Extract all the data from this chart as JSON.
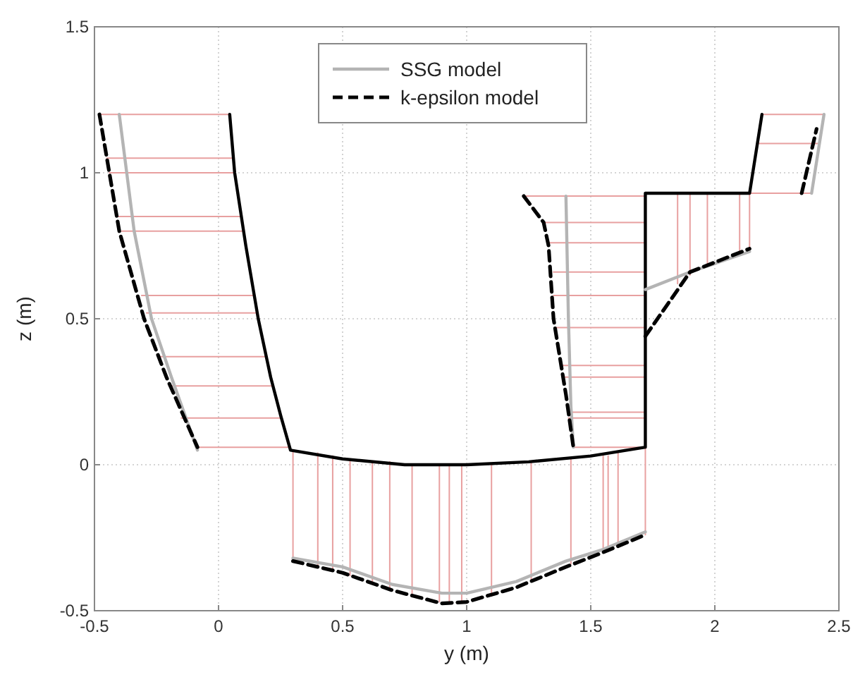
{
  "chart_data": {
    "type": "line",
    "xlabel": "y (m)",
    "ylabel": "z (m)",
    "xlim": [
      -0.5,
      2.5
    ],
    "ylim": [
      -0.5,
      1.5
    ],
    "xticks": [
      -0.5,
      0,
      0.5,
      1,
      1.5,
      2,
      2.5
    ],
    "yticks": [
      -0.5,
      0,
      0.5,
      1,
      1.5
    ],
    "grid": true,
    "legend": "top",
    "marker": "none",
    "series": [
      {
        "color": "#e8a0a0",
        "x": [
          -0.48,
          0.045
        ],
        "values": [
          1.2,
          1.2
        ]
      },
      {
        "color": "#e8a0a0",
        "x": [
          -0.45,
          0.055
        ],
        "values": [
          1.05,
          1.05
        ]
      },
      {
        "color": "#e8a0a0",
        "x": [
          -0.44,
          0.065
        ],
        "values": [
          1.0,
          1.0
        ]
      },
      {
        "color": "#e8a0a0",
        "x": [
          -0.41,
          0.09
        ],
        "values": [
          0.85,
          0.85
        ]
      },
      {
        "color": "#e8a0a0",
        "x": [
          -0.39,
          0.1
        ],
        "values": [
          0.8,
          0.8
        ]
      },
      {
        "color": "#e8a0a0",
        "x": [
          -0.31,
          0.14
        ],
        "values": [
          0.58,
          0.58
        ]
      },
      {
        "color": "#e8a0a0",
        "x": [
          -0.29,
          0.155
        ],
        "values": [
          0.52,
          0.52
        ]
      },
      {
        "color": "#e8a0a0",
        "x": [
          -0.24,
          0.19
        ],
        "values": [
          0.37,
          0.37
        ]
      },
      {
        "color": "#e8a0a0",
        "x": [
          -0.2,
          0.22
        ],
        "values": [
          0.27,
          0.27
        ]
      },
      {
        "color": "#e8a0a0",
        "x": [
          -0.15,
          0.25
        ],
        "values": [
          0.16,
          0.16
        ]
      },
      {
        "color": "#e8a0a0",
        "x": [
          -0.09,
          0.285
        ],
        "values": [
          0.06,
          0.06
        ]
      },
      {
        "color": "#e8a0a0",
        "x": [
          0.3,
          0.3
        ],
        "values": [
          0.05,
          -0.33
        ]
      },
      {
        "color": "#e8a0a0",
        "x": [
          0.4,
          0.4
        ],
        "values": [
          0.04,
          -0.35
        ]
      },
      {
        "color": "#e8a0a0",
        "x": [
          0.46,
          0.46
        ],
        "values": [
          0.03,
          -0.36
        ]
      },
      {
        "color": "#e8a0a0",
        "x": [
          0.53,
          0.53
        ],
        "values": [
          0.02,
          -0.38
        ]
      },
      {
        "color": "#e8a0a0",
        "x": [
          0.62,
          0.62
        ],
        "values": [
          0.01,
          -0.4
        ]
      },
      {
        "color": "#e8a0a0",
        "x": [
          0.69,
          0.69
        ],
        "values": [
          0.01,
          -0.42
        ]
      },
      {
        "color": "#e8a0a0",
        "x": [
          0.78,
          0.78
        ],
        "values": [
          0.0,
          -0.44
        ]
      },
      {
        "color": "#e8a0a0",
        "x": [
          0.89,
          0.89
        ],
        "values": [
          0.0,
          -0.47
        ]
      },
      {
        "color": "#e8a0a0",
        "x": [
          0.93,
          0.93
        ],
        "values": [
          0.0,
          -0.47
        ]
      },
      {
        "color": "#e8a0a0",
        "x": [
          0.98,
          0.98
        ],
        "values": [
          0.0,
          -0.47
        ]
      },
      {
        "color": "#e8a0a0",
        "x": [
          1.1,
          1.1
        ],
        "values": [
          0.0,
          -0.45
        ]
      },
      {
        "color": "#e8a0a0",
        "x": [
          1.26,
          1.26
        ],
        "values": [
          0.01,
          -0.4
        ]
      },
      {
        "color": "#e8a0a0",
        "x": [
          1.42,
          1.42
        ],
        "values": [
          0.02,
          -0.34
        ]
      },
      {
        "color": "#e8a0a0",
        "x": [
          1.55,
          1.55
        ],
        "values": [
          0.03,
          -0.3
        ]
      },
      {
        "color": "#e8a0a0",
        "x": [
          1.57,
          1.57
        ],
        "values": [
          0.03,
          -0.29
        ]
      },
      {
        "color": "#e8a0a0",
        "x": [
          1.61,
          1.61
        ],
        "values": [
          0.04,
          -0.28
        ]
      },
      {
        "color": "#e8a0a0",
        "x": [
          1.72,
          1.72
        ],
        "values": [
          0.06,
          -0.24
        ]
      },
      {
        "color": "#e8a0a0",
        "x": [
          1.23,
          1.72
        ],
        "values": [
          0.92,
          0.92
        ]
      },
      {
        "color": "#e8a0a0",
        "x": [
          1.31,
          1.72
        ],
        "values": [
          0.83,
          0.83
        ]
      },
      {
        "color": "#e8a0a0",
        "x": [
          1.33,
          1.72
        ],
        "values": [
          0.76,
          0.76
        ]
      },
      {
        "color": "#e8a0a0",
        "x": [
          1.35,
          1.72
        ],
        "values": [
          0.66,
          0.66
        ]
      },
      {
        "color": "#e8a0a0",
        "x": [
          1.35,
          1.72
        ],
        "values": [
          0.58,
          0.58
        ]
      },
      {
        "color": "#e8a0a0",
        "x": [
          1.36,
          1.72
        ],
        "values": [
          0.47,
          0.47
        ]
      },
      {
        "color": "#e8a0a0",
        "x": [
          1.38,
          1.72
        ],
        "values": [
          0.34,
          0.34
        ]
      },
      {
        "color": "#e8a0a0",
        "x": [
          1.39,
          1.72
        ],
        "values": [
          0.3,
          0.3
        ]
      },
      {
        "color": "#e8a0a0",
        "x": [
          1.41,
          1.72
        ],
        "values": [
          0.18,
          0.18
        ]
      },
      {
        "color": "#e8a0a0",
        "x": [
          1.41,
          1.72
        ],
        "values": [
          0.16,
          0.16
        ]
      },
      {
        "color": "#e8a0a0",
        "x": [
          1.43,
          1.72
        ],
        "values": [
          0.06,
          0.06
        ]
      },
      {
        "color": "#e8a0a0",
        "x": [
          1.85,
          1.85
        ],
        "values": [
          0.93,
          0.62
        ]
      },
      {
        "color": "#e8a0a0",
        "x": [
          1.9,
          1.9
        ],
        "values": [
          0.93,
          0.65
        ]
      },
      {
        "color": "#e8a0a0",
        "x": [
          1.97,
          1.97
        ],
        "values": [
          0.93,
          0.68
        ]
      },
      {
        "color": "#e8a0a0",
        "x": [
          2.1,
          2.1
        ],
        "values": [
          0.93,
          0.72
        ]
      },
      {
        "color": "#e8a0a0",
        "x": [
          2.14,
          2.14
        ],
        "values": [
          0.93,
          0.74
        ]
      },
      {
        "color": "#e8a0a0",
        "x": [
          2.19,
          2.44
        ],
        "values": [
          1.2,
          1.2
        ]
      },
      {
        "color": "#e8a0a0",
        "x": [
          2.17,
          2.42
        ],
        "values": [
          1.1,
          1.1
        ]
      },
      {
        "color": "#e8a0a0",
        "x": [
          2.14,
          2.39
        ],
        "values": [
          0.93,
          0.93
        ]
      },
      {
        "color": "#000000",
        "line_style": "solid",
        "x": [
          0.045,
          0.065,
          0.11,
          0.16,
          0.21,
          0.25,
          0.29,
          0.5,
          0.75,
          1.0,
          1.25,
          1.5,
          1.72,
          1.72,
          2.14,
          2.19
        ],
        "values": [
          1.2,
          1.0,
          0.75,
          0.5,
          0.3,
          0.17,
          0.05,
          0.02,
          0.0,
          0.0,
          0.01,
          0.03,
          0.06,
          0.93,
          0.93,
          1.2
        ]
      },
      {
        "name": "SSG model",
        "color": "#b4b4b4",
        "line_style": "solid",
        "x": [
          -0.4,
          -0.37,
          -0.34,
          -0.27,
          -0.19,
          -0.085
        ],
        "values": [
          1.2,
          1.0,
          0.8,
          0.5,
          0.3,
          0.05
        ]
      },
      {
        "color": "#b4b4b4",
        "line_style": "solid",
        "x": [
          0.3,
          0.5,
          0.7,
          0.9,
          1.0,
          1.2,
          1.4,
          1.55,
          1.72
        ],
        "values": [
          -0.32,
          -0.35,
          -0.41,
          -0.44,
          -0.44,
          -0.4,
          -0.33,
          -0.29,
          -0.23
        ]
      },
      {
        "color": "#b4b4b4",
        "line_style": "solid",
        "x": [
          1.4,
          1.41,
          1.42,
          1.43
        ],
        "values": [
          0.92,
          0.5,
          0.2,
          0.06
        ]
      },
      {
        "color": "#b4b4b4",
        "line_style": "solid",
        "x": [
          1.72,
          1.9,
          2.14
        ],
        "values": [
          0.6,
          0.66,
          0.73
        ]
      },
      {
        "color": "#b4b4b4",
        "line_style": "solid",
        "x": [
          2.39,
          2.44
        ],
        "values": [
          0.93,
          1.2
        ]
      },
      {
        "name": "k-epsilon model",
        "color": "#000000",
        "line_style": "dashed",
        "x": [
          -0.48,
          -0.44,
          -0.4,
          -0.3,
          -0.21,
          -0.085
        ],
        "values": [
          1.2,
          1.0,
          0.8,
          0.5,
          0.3,
          0.06
        ]
      },
      {
        "color": "#000000",
        "line_style": "dashed",
        "x": [
          0.3,
          0.5,
          0.7,
          0.9,
          1.0,
          1.2,
          1.4,
          1.55,
          1.72
        ],
        "values": [
          -0.33,
          -0.37,
          -0.43,
          -0.475,
          -0.47,
          -0.42,
          -0.35,
          -0.3,
          -0.24
        ]
      },
      {
        "color": "#000000",
        "line_style": "dashed",
        "x": [
          1.23,
          1.31,
          1.33,
          1.35,
          1.4,
          1.43
        ],
        "values": [
          0.92,
          0.83,
          0.75,
          0.5,
          0.24,
          0.06
        ]
      },
      {
        "color": "#000000",
        "line_style": "dashed",
        "x": [
          1.72,
          1.9,
          2.14
        ],
        "values": [
          0.44,
          0.66,
          0.74
        ]
      },
      {
        "color": "#000000",
        "line_style": "dashed",
        "x": [
          2.35,
          2.41
        ],
        "values": [
          0.93,
          1.15
        ]
      }
    ]
  }
}
